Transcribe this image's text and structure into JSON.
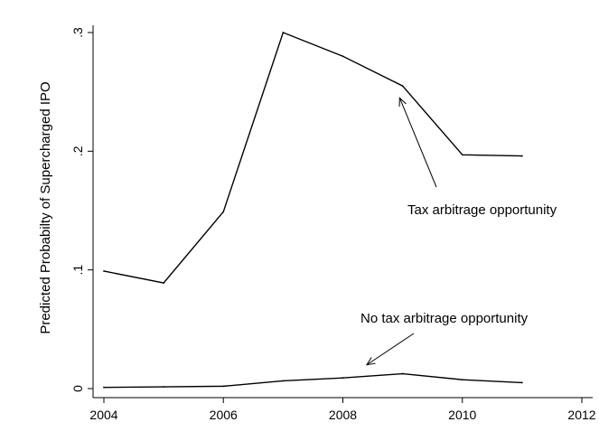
{
  "chart_data": {
    "type": "line",
    "title": "",
    "xlabel": "",
    "ylabel": "Predicted Probabilty of Supercharged IPO",
    "xlim": [
      2004,
      2012
    ],
    "ylim": [
      0,
      0.3
    ],
    "x_ticks": [
      2004,
      2006,
      2008,
      2010,
      2012
    ],
    "x_tick_labels": [
      "2004",
      "2006",
      "2008",
      "2010",
      "2012"
    ],
    "y_ticks": [
      0,
      0.1,
      0.2,
      0.3
    ],
    "y_tick_labels": [
      "0",
      ".1",
      ".2",
      ".3"
    ],
    "grid": false,
    "legend": "none",
    "series": [
      {
        "x": [
          2004,
          2005,
          2006,
          2007,
          2008,
          2009,
          2010,
          2011
        ],
        "y": [
          0.099,
          0.089,
          0.149,
          0.3,
          0.28,
          0.255,
          0.197,
          0.196
        ],
        "color": "#000000"
      },
      {
        "x": [
          2004,
          2005,
          2006,
          2007,
          2008,
          2009,
          2010,
          2011
        ],
        "y": [
          0.001,
          0.0015,
          0.002,
          0.0065,
          0.009,
          0.0125,
          0.0075,
          0.005
        ],
        "color": "#000000"
      }
    ],
    "annotations": [
      {
        "text": "Tax arbitrage opportunity",
        "arrow_to": [
          2008.95,
          0.245
        ]
      },
      {
        "text": "No tax arbitrage opportunity",
        "arrow_to": [
          2008.4,
          0.02
        ]
      }
    ]
  }
}
